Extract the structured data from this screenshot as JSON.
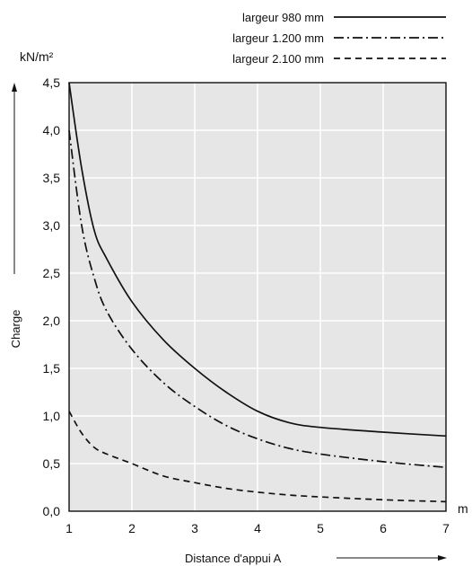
{
  "chart_data": {
    "type": "line",
    "title": "",
    "xlabel": "Distance d'appui A",
    "ylabel": "Charge",
    "y_unit": "kN/m²",
    "x_unit": "m",
    "xlim": [
      1,
      7
    ],
    "ylim": [
      0,
      4.5
    ],
    "x_ticks": [
      1,
      2,
      3,
      4,
      5,
      6,
      7
    ],
    "x_tick_labels": [
      "1",
      "2",
      "3",
      "4",
      "5",
      "6",
      "7"
    ],
    "y_ticks": [
      0,
      0.5,
      1,
      1.5,
      2,
      2.5,
      3,
      3.5,
      4,
      4.5
    ],
    "y_tick_labels": [
      "0,0",
      "0,5",
      "1,0",
      "1,5",
      "2,0",
      "2,5",
      "3,0",
      "3,5",
      "4,0",
      "4,5"
    ],
    "grid": true,
    "legend_position": "top-right",
    "series": [
      {
        "name": "largeur 980 mm",
        "line_style": "solid",
        "x": [
          1.0,
          1.2,
          1.4,
          1.6,
          2.0,
          2.5,
          3.0,
          3.5,
          4.0,
          4.5,
          5.0,
          6.0,
          7.0
        ],
        "y": [
          4.5,
          3.6,
          2.95,
          2.65,
          2.2,
          1.8,
          1.5,
          1.25,
          1.05,
          0.93,
          0.88,
          0.83,
          0.79
        ]
      },
      {
        "name": "largeur 1.200 mm",
        "line_style": "dash-dot",
        "x": [
          1.0,
          1.2,
          1.4,
          1.6,
          2.0,
          2.5,
          3.0,
          3.5,
          4.0,
          4.5,
          5.0,
          6.0,
          7.0
        ],
        "y": [
          4.0,
          3.0,
          2.45,
          2.1,
          1.7,
          1.35,
          1.1,
          0.9,
          0.76,
          0.66,
          0.6,
          0.52,
          0.46
        ]
      },
      {
        "name": "largeur 2.100 mm",
        "line_style": "dashed",
        "x": [
          1.0,
          1.2,
          1.4,
          1.6,
          2.0,
          2.5,
          3.0,
          3.5,
          4.0,
          4.5,
          5.0,
          6.0,
          7.0
        ],
        "y": [
          1.05,
          0.82,
          0.67,
          0.6,
          0.5,
          0.37,
          0.3,
          0.24,
          0.2,
          0.17,
          0.15,
          0.12,
          0.1
        ]
      }
    ],
    "colors": {
      "plot_background": "#e6e6e6",
      "grid": "#ffffff",
      "line": "#111111"
    }
  }
}
